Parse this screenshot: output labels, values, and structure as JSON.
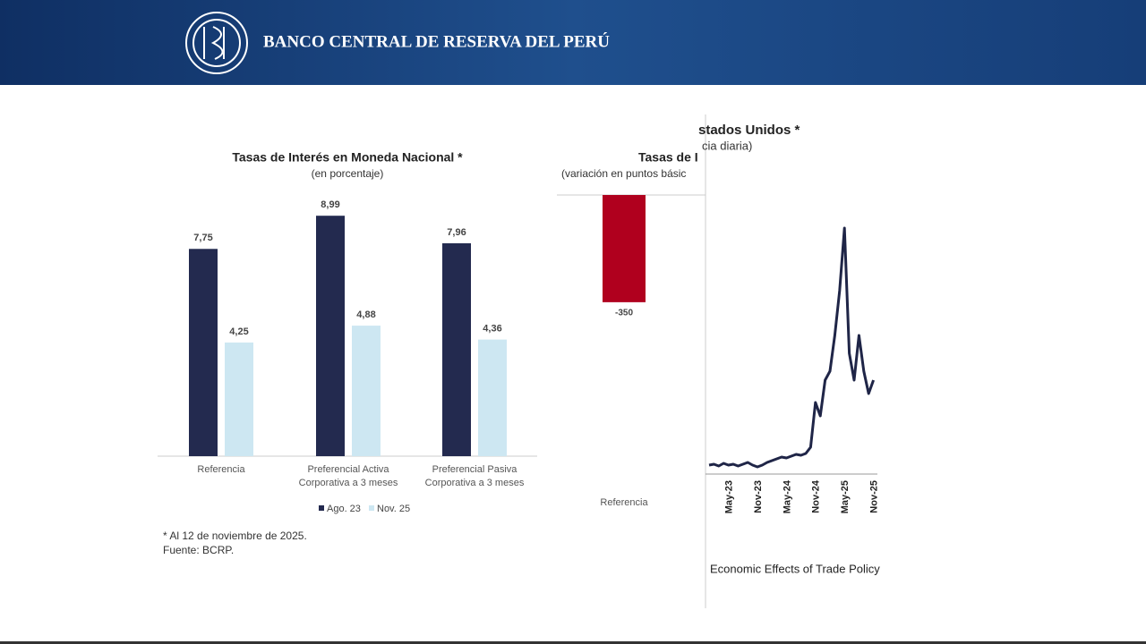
{
  "header": {
    "title": "BANCO CENTRAL DE RESERVA DEL PERÚ"
  },
  "chart_data": [
    {
      "type": "bar",
      "title": "Tasas de Interés en Moneda Nacional *",
      "subtitle": "(en porcentaje)",
      "categories": [
        "Referencia",
        "Preferencial Activa Corporativa a 3 meses",
        "Preferencial Pasiva Corporativa a 3 meses"
      ],
      "series": [
        {
          "name": "Ago. 23",
          "color": "#232a4f",
          "values": [
            7.75,
            8.99,
            7.96
          ],
          "value_labels": [
            "7,75",
            "8,99",
            "7,96"
          ]
        },
        {
          "name": "Nov. 25",
          "color": "#cde7f2",
          "values": [
            4.25,
            4.88,
            4.36
          ],
          "value_labels": [
            "4,25",
            "4,88",
            "4,36"
          ]
        }
      ],
      "ylim": [
        0,
        10
      ],
      "footnotes": [
        "* Al 12 de noviembre de 2025.",
        "Fuente: BCRP."
      ]
    },
    {
      "type": "bar",
      "title": "Tasas de I",
      "subtitle": "(variación en puntos básic",
      "categories": [
        "Referencia"
      ],
      "values": [
        -350
      ],
      "color": "#b0001e",
      "ylim": [
        -400,
        0
      ]
    },
    {
      "type": "line",
      "title": "stados Unidos *",
      "subtitle": "cia diaria)",
      "categories": [
        null,
        null,
        null,
        null,
        "May-23",
        null,
        null,
        null,
        null,
        null,
        "Nov-23",
        null,
        null,
        null,
        null,
        null,
        "May-24",
        null,
        null,
        null,
        null,
        null,
        "Nov-24",
        null,
        null,
        null,
        null,
        null,
        "May-25",
        null,
        null,
        null,
        null,
        null,
        "Nov-25"
      ],
      "values": [
        5,
        6,
        4,
        7,
        5,
        6,
        4,
        6,
        8,
        5,
        3,
        5,
        8,
        10,
        12,
        14,
        13,
        15,
        17,
        16,
        18,
        25,
        75,
        60,
        100,
        110,
        150,
        200,
        270,
        130,
        100,
        150,
        110,
        85,
        100
      ],
      "color": "#1f2547",
      "ylim": [
        0,
        280
      ],
      "source": "Economic Effects of Trade Policy"
    }
  ]
}
